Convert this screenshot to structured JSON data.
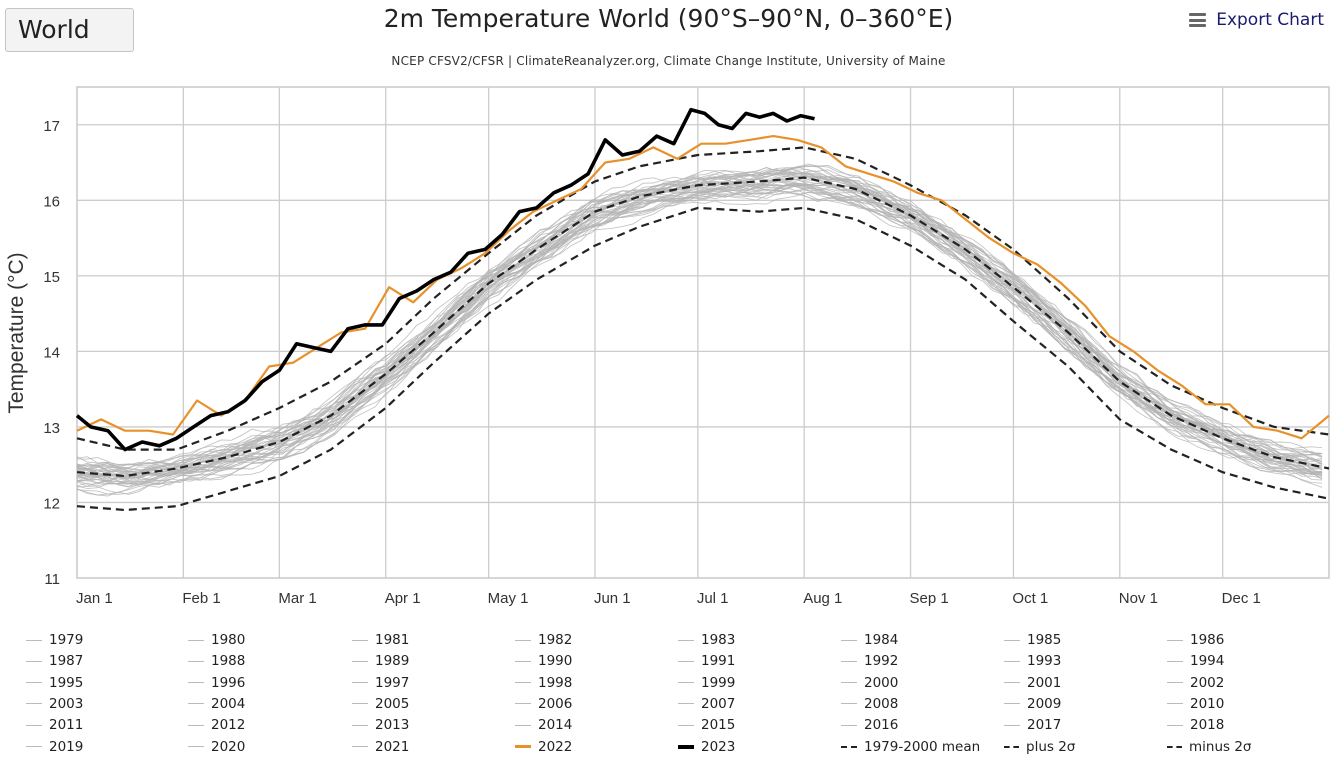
{
  "region_selector": {
    "value": "World"
  },
  "header": {
    "title": "2m Temperature World (90°S–90°N, 0–360°E)",
    "subtitle": "NCEP CFSV2/CFSR | ClimateReanalyzer.org, Climate Change Institute, University of Maine",
    "export_label": "Export Chart"
  },
  "colors": {
    "background_years": "#b3b3b3",
    "year_2022": "#e8912b",
    "year_2023": "#000000",
    "reference": "#222222",
    "grid": "#cccccc"
  },
  "chart_data": {
    "type": "line",
    "title": "2m Temperature World (90°S–90°N, 0–360°E)",
    "subtitle": "NCEP CFSV2/CFSR | ClimateReanalyzer.org, Climate Change Institute, University of Maine",
    "xlabel": "",
    "ylabel": "Temperature (°C)",
    "ylim": [
      11,
      17.5
    ],
    "yticks": [
      11,
      12,
      13,
      14,
      15,
      16,
      17
    ],
    "xlim": [
      1,
      366
    ],
    "xticks": [
      {
        "day": 1,
        "label": "Jan 1"
      },
      {
        "day": 32,
        "label": "Feb 1"
      },
      {
        "day": 60,
        "label": "Mar 1"
      },
      {
        "day": 91,
        "label": "Apr 1"
      },
      {
        "day": 121,
        "label": "May 1"
      },
      {
        "day": 152,
        "label": "Jun 1"
      },
      {
        "day": 182,
        "label": "Jul 1"
      },
      {
        "day": 213,
        "label": "Aug 1"
      },
      {
        "day": 244,
        "label": "Sep 1"
      },
      {
        "day": 274,
        "label": "Oct 1"
      },
      {
        "day": 305,
        "label": "Nov 1"
      },
      {
        "day": 335,
        "label": "Dec 1"
      }
    ],
    "grid": true,
    "legend_position": "bottom",
    "series": [
      {
        "name": "2023",
        "style": "solid-thick",
        "color": "#000000",
        "x": [
          1,
          5,
          10,
          15,
          20,
          25,
          30,
          35,
          40,
          45,
          50,
          55,
          60,
          65,
          70,
          75,
          80,
          85,
          90,
          95,
          100,
          105,
          110,
          115,
          120,
          125,
          130,
          135,
          140,
          145,
          150,
          155,
          160,
          165,
          170,
          175,
          180,
          184,
          188,
          192,
          196,
          200,
          204,
          208,
          212,
          216
        ],
        "y": [
          13.15,
          13.0,
          12.95,
          12.7,
          12.8,
          12.75,
          12.85,
          13.0,
          13.15,
          13.2,
          13.35,
          13.6,
          13.75,
          14.1,
          14.05,
          14.0,
          14.3,
          14.35,
          14.35,
          14.7,
          14.8,
          14.95,
          15.05,
          15.3,
          15.35,
          15.55,
          15.85,
          15.9,
          16.1,
          16.2,
          16.35,
          16.8,
          16.6,
          16.65,
          16.85,
          16.75,
          17.2,
          17.15,
          17.0,
          16.95,
          17.15,
          17.1,
          17.15,
          17.05,
          17.12,
          17.08
        ]
      },
      {
        "name": "2022",
        "style": "solid",
        "color": "#e8912b",
        "x": [
          1,
          8,
          15,
          22,
          29,
          36,
          43,
          50,
          57,
          64,
          71,
          78,
          85,
          92,
          99,
          106,
          113,
          120,
          127,
          134,
          141,
          148,
          155,
          162,
          169,
          176,
          183,
          190,
          197,
          204,
          211,
          218,
          225,
          232,
          239,
          246,
          253,
          260,
          267,
          274,
          281,
          288,
          295,
          302,
          309,
          316,
          323,
          330,
          337,
          344,
          351,
          358,
          366
        ],
        "y": [
          12.95,
          13.1,
          12.95,
          12.95,
          12.9,
          13.35,
          13.15,
          13.35,
          13.8,
          13.85,
          14.05,
          14.25,
          14.3,
          14.85,
          14.65,
          14.95,
          15.1,
          15.3,
          15.6,
          15.85,
          16.0,
          16.15,
          16.5,
          16.55,
          16.7,
          16.55,
          16.75,
          16.75,
          16.8,
          16.85,
          16.8,
          16.7,
          16.45,
          16.35,
          16.25,
          16.1,
          16.0,
          15.75,
          15.5,
          15.3,
          15.15,
          14.9,
          14.6,
          14.2,
          14.0,
          13.75,
          13.55,
          13.3,
          13.3,
          13.0,
          12.95,
          12.85,
          13.15
        ]
      },
      {
        "name": "1979-2000 mean",
        "style": "dashed",
        "color": "#222222",
        "x": [
          1,
          15,
          30,
          45,
          60,
          75,
          91,
          105,
          121,
          135,
          152,
          165,
          182,
          200,
          213,
          228,
          244,
          260,
          274,
          290,
          305,
          320,
          335,
          350,
          366
        ],
        "y": [
          12.4,
          12.35,
          12.45,
          12.6,
          12.8,
          13.15,
          13.7,
          14.25,
          14.9,
          15.35,
          15.85,
          16.05,
          16.2,
          16.25,
          16.3,
          16.15,
          15.8,
          15.35,
          14.85,
          14.25,
          13.6,
          13.15,
          12.85,
          12.6,
          12.45
        ]
      },
      {
        "name": "plus 2σ",
        "style": "dash-dot",
        "color": "#222222",
        "x": [
          1,
          15,
          30,
          45,
          60,
          75,
          91,
          105,
          121,
          135,
          152,
          165,
          182,
          200,
          213,
          228,
          244,
          260,
          274,
          290,
          305,
          320,
          335,
          350,
          366
        ],
        "y": [
          12.85,
          12.7,
          12.7,
          12.95,
          13.25,
          13.6,
          14.1,
          14.7,
          15.3,
          15.8,
          16.25,
          16.45,
          16.6,
          16.65,
          16.7,
          16.55,
          16.2,
          15.8,
          15.35,
          14.7,
          14.0,
          13.55,
          13.25,
          13.0,
          12.9
        ]
      },
      {
        "name": "minus 2σ",
        "style": "dash-dot",
        "color": "#222222",
        "x": [
          1,
          15,
          30,
          45,
          60,
          75,
          91,
          105,
          121,
          135,
          152,
          165,
          182,
          200,
          213,
          228,
          244,
          260,
          274,
          290,
          305,
          320,
          335,
          350,
          366
        ],
        "y": [
          11.95,
          11.9,
          11.95,
          12.15,
          12.35,
          12.7,
          13.25,
          13.85,
          14.5,
          14.95,
          15.4,
          15.65,
          15.9,
          15.85,
          15.9,
          15.75,
          15.4,
          14.95,
          14.4,
          13.8,
          13.1,
          12.7,
          12.4,
          12.2,
          12.05
        ]
      }
    ],
    "background_years": [
      "1979",
      "1980",
      "1981",
      "1982",
      "1983",
      "1984",
      "1985",
      "1986",
      "1987",
      "1988",
      "1989",
      "1990",
      "1991",
      "1992",
      "1993",
      "1994",
      "1995",
      "1996",
      "1997",
      "1998",
      "1999",
      "2000",
      "2001",
      "2002",
      "2003",
      "2004",
      "2005",
      "2006",
      "2007",
      "2008",
      "2009",
      "2010",
      "2011",
      "2012",
      "2013",
      "2014",
      "2015",
      "2016",
      "2017",
      "2018",
      "2019",
      "2020",
      "2021"
    ],
    "background_years_note": "individual years drawn as thin gray lines spread between roughly the minus 2σ and plus 2σ envelopes"
  },
  "legend": {
    "items": [
      {
        "label": "1979",
        "kind": "year"
      },
      {
        "label": "1980",
        "kind": "year"
      },
      {
        "label": "1981",
        "kind": "year"
      },
      {
        "label": "1982",
        "kind": "year"
      },
      {
        "label": "1983",
        "kind": "year"
      },
      {
        "label": "1984",
        "kind": "year"
      },
      {
        "label": "1985",
        "kind": "year"
      },
      {
        "label": "1986",
        "kind": "year"
      },
      {
        "label": "1987",
        "kind": "year"
      },
      {
        "label": "1988",
        "kind": "year"
      },
      {
        "label": "1989",
        "kind": "year"
      },
      {
        "label": "1990",
        "kind": "year"
      },
      {
        "label": "1991",
        "kind": "year"
      },
      {
        "label": "1992",
        "kind": "year"
      },
      {
        "label": "1993",
        "kind": "year"
      },
      {
        "label": "1994",
        "kind": "year"
      },
      {
        "label": "1995",
        "kind": "year"
      },
      {
        "label": "1996",
        "kind": "year"
      },
      {
        "label": "1997",
        "kind": "year"
      },
      {
        "label": "1998",
        "kind": "year"
      },
      {
        "label": "1999",
        "kind": "year"
      },
      {
        "label": "2000",
        "kind": "year"
      },
      {
        "label": "2001",
        "kind": "year"
      },
      {
        "label": "2002",
        "kind": "year"
      },
      {
        "label": "2003",
        "kind": "year"
      },
      {
        "label": "2004",
        "kind": "year"
      },
      {
        "label": "2005",
        "kind": "year"
      },
      {
        "label": "2006",
        "kind": "year"
      },
      {
        "label": "2007",
        "kind": "year"
      },
      {
        "label": "2008",
        "kind": "year"
      },
      {
        "label": "2009",
        "kind": "year"
      },
      {
        "label": "2010",
        "kind": "year"
      },
      {
        "label": "2011",
        "kind": "year"
      },
      {
        "label": "2012",
        "kind": "year"
      },
      {
        "label": "2013",
        "kind": "year"
      },
      {
        "label": "2014",
        "kind": "year"
      },
      {
        "label": "2015",
        "kind": "year"
      },
      {
        "label": "2016",
        "kind": "year"
      },
      {
        "label": "2017",
        "kind": "year"
      },
      {
        "label": "2018",
        "kind": "year"
      },
      {
        "label": "2019",
        "kind": "year"
      },
      {
        "label": "2020",
        "kind": "year"
      },
      {
        "label": "2021",
        "kind": "year"
      },
      {
        "label": "2022",
        "kind": "y2022"
      },
      {
        "label": "2023",
        "kind": "y2023"
      },
      {
        "label": "1979-2000 mean",
        "kind": "mean"
      },
      {
        "label": "plus 2σ",
        "kind": "sigma"
      },
      {
        "label": "minus 2σ",
        "kind": "sigma"
      }
    ]
  }
}
